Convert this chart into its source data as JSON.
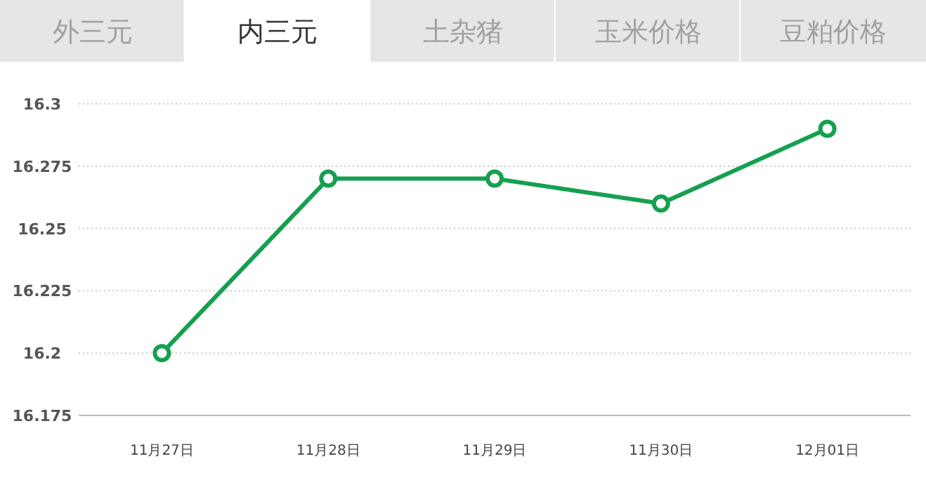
{
  "chart_data": {
    "type": "line",
    "annotations": [
      "外三元",
      "内三元",
      "土杂猪",
      "玉米价格",
      "豆粕价格"
    ],
    "categories": [
      "11月27日",
      "11月28日",
      "11月29日",
      "11月30日",
      "12月01日"
    ],
    "series": [
      {
        "color": "#14a050",
        "values": [
          16.2,
          16.27,
          16.27,
          16.26,
          16.29
        ]
      }
    ],
    "ylim": [
      16.175,
      16.3
    ],
    "yticks": [
      16.175,
      16.2,
      16.225,
      16.25,
      16.275,
      16.3
    ],
    "grid": "y",
    "marker": "circle",
    "line_style": "solid"
  }
}
